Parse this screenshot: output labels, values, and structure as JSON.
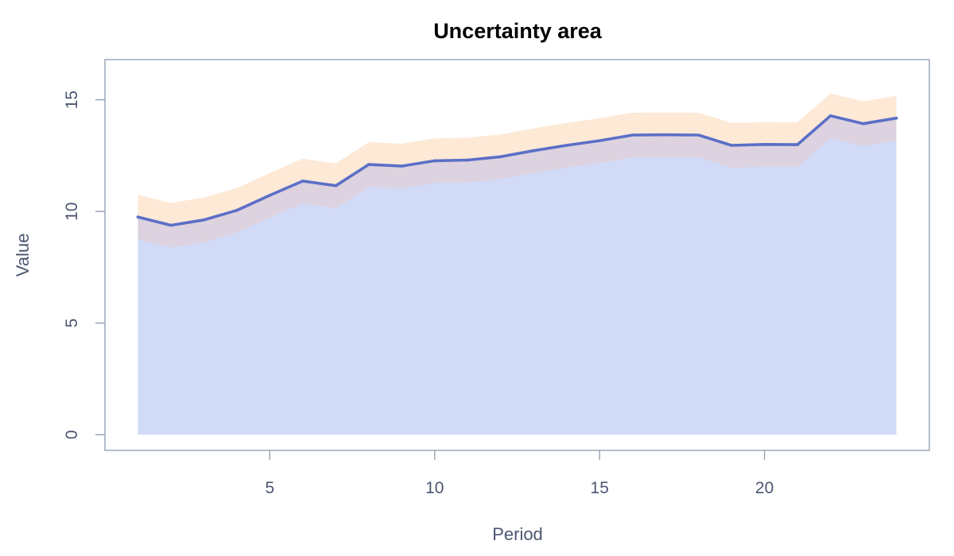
{
  "chart_data": {
    "type": "area",
    "title": "Uncertainty area",
    "xlabel": "Period",
    "ylabel": "Value",
    "xlim": [
      0,
      25
    ],
    "ylim": [
      -0.7,
      16.8
    ],
    "x_ticks": [
      5,
      10,
      15,
      20
    ],
    "y_ticks": [
      0,
      5,
      10,
      15
    ],
    "grid": false,
    "x": [
      1,
      2,
      3,
      4,
      5,
      6,
      7,
      8,
      9,
      10,
      11,
      12,
      13,
      14,
      15,
      16,
      17,
      18,
      19,
      20,
      21,
      22,
      23,
      24
    ],
    "series": [
      {
        "values": [
          9.75,
          9.38,
          9.62,
          10.05,
          10.72,
          11.36,
          11.15,
          12.1,
          12.03,
          12.27,
          12.3,
          12.45,
          12.72,
          12.96,
          13.17,
          13.42,
          13.43,
          13.42,
          12.96,
          13.0,
          12.99,
          14.28,
          13.93,
          14.18
        ]
      }
    ],
    "band": {
      "lower": "value - 1",
      "upper": "value + 1"
    },
    "colors": {
      "line": "#5b6fc7",
      "area_fill": "#d1dbf7",
      "band_fill": "#fde9d6",
      "band_overlap": "#ddd2df",
      "axis": "#8f9bb0",
      "text": "#4c5670"
    }
  }
}
